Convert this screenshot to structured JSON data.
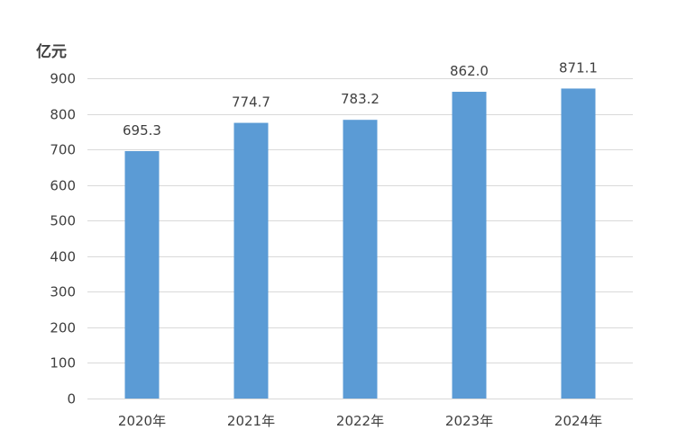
{
  "chart_data": {
    "type": "bar",
    "title": "",
    "xlabel": "",
    "ylabel": "亿元",
    "categories": [
      "2020年",
      "2021年",
      "2022年",
      "2023年",
      "2024年"
    ],
    "series": [
      {
        "values": [
          695.3,
          774.7,
          783.2,
          862.0,
          871.1
        ],
        "value_labels": [
          "695.3",
          "774.7",
          "783.2",
          "862.0",
          "871.1"
        ],
        "color": "#5b9bd5"
      }
    ],
    "ylim": [
      0,
      900
    ],
    "yticks": [
      0,
      100,
      200,
      300,
      400,
      500,
      600,
      700,
      800,
      900
    ],
    "grid": true,
    "legend": "none"
  }
}
